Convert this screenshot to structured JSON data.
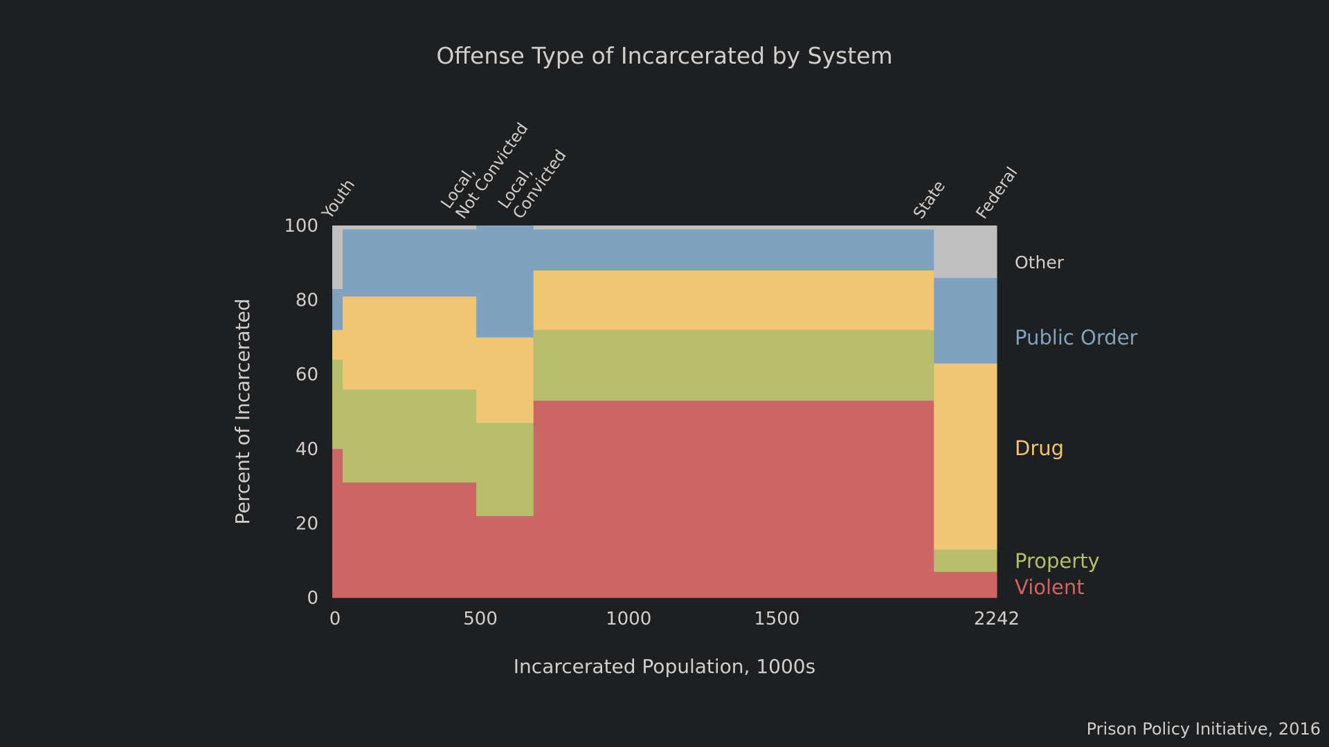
{
  "chart_data": {
    "type": "bar",
    "subtype": "marimekko",
    "title": "Offense Type of Incarcerated by System",
    "xlabel": "Incarcerated Population, 1000s",
    "ylabel": "Percent of Incarcerated",
    "xlim": [
      0,
      2242
    ],
    "ylim": [
      0,
      100
    ],
    "xticks": [
      "0",
      "500",
      "1000",
      "1500",
      "2242"
    ],
    "xtick_values": [
      0,
      500,
      1000,
      1500,
      2242
    ],
    "yticks": [
      "0",
      "20",
      "40",
      "60",
      "80",
      "100"
    ],
    "yticks_values": [
      0,
      20,
      40,
      60,
      80,
      100
    ],
    "grid": false,
    "legend_placement": "right",
    "categories": [
      {
        "label": [
          "Youth"
        ],
        "population": 35
      },
      {
        "label": [
          "Local,",
          "Not Convicted"
        ],
        "population": 451
      },
      {
        "label": [
          "Local,",
          "Convicted"
        ],
        "population": 193
      },
      {
        "label": [
          "State"
        ],
        "population": 1351
      },
      {
        "label": [
          "Federal"
        ],
        "population": 212
      }
    ],
    "series": [
      {
        "name": "Violent",
        "color": "#cc6566",
        "values": [
          40,
          31,
          22,
          53,
          7
        ]
      },
      {
        "name": "Property",
        "color": "#b6bd6b",
        "values": [
          24,
          25,
          25,
          19,
          6
        ]
      },
      {
        "name": "Drug",
        "color": "#f0c674",
        "values": [
          8,
          25,
          23,
          16,
          50
        ]
      },
      {
        "name": "Public Order",
        "color": "#81a2be",
        "values": [
          11,
          18,
          30,
          11,
          23
        ]
      },
      {
        "name": "Other",
        "color": "#c0c0c0",
        "values": [
          17,
          1,
          0,
          1,
          14
        ]
      }
    ],
    "source": "Prison Policy Initiative, 2016"
  }
}
